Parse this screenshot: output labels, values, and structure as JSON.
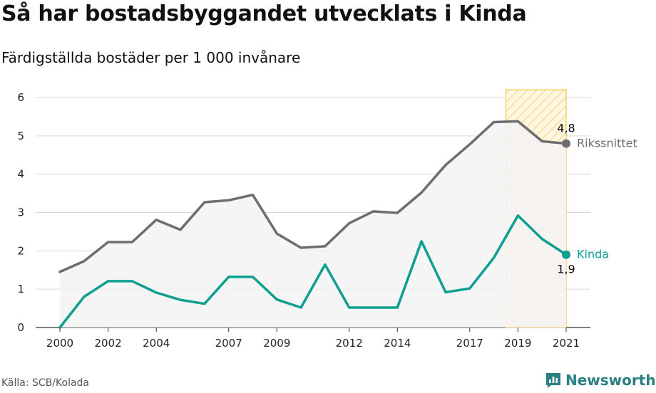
{
  "title": "Så har bostadsbyggandet utvecklats i Kinda",
  "subtitle": "Färdigställda bostäder per 1 000 invånare",
  "source": "Källa: SCB/Kolada",
  "brand": "Newsworthy",
  "colors": {
    "riket": "#6f6c70",
    "kinda": "#0f9e92",
    "fill": "#f3f3f4",
    "highlight": "#f5c842",
    "brand": "#2a7f80"
  },
  "chart_data": {
    "type": "line",
    "x": [
      2000,
      2001,
      2002,
      2003,
      2004,
      2005,
      2006,
      2007,
      2008,
      2009,
      2010,
      2011,
      2012,
      2013,
      2014,
      2015,
      2016,
      2017,
      2018,
      2019,
      2020,
      2021
    ],
    "series": [
      {
        "name": "Rikssnittet",
        "end_label": "4,8",
        "values": [
          1.45,
          1.73,
          2.23,
          2.23,
          2.81,
          2.55,
          3.27,
          3.32,
          3.46,
          2.45,
          2.08,
          2.12,
          2.72,
          3.03,
          2.99,
          3.52,
          4.24,
          4.78,
          5.36,
          5.38,
          4.86,
          4.8
        ]
      },
      {
        "name": "Kinda",
        "end_label": "1,9",
        "values": [
          0.0,
          0.8,
          1.21,
          1.21,
          0.91,
          0.72,
          0.62,
          1.32,
          1.32,
          0.73,
          0.52,
          1.64,
          0.52,
          0.52,
          0.52,
          2.25,
          0.92,
          1.02,
          1.82,
          2.92,
          2.31,
          1.9
        ]
      }
    ],
    "x_tick_labels": [
      "2000",
      "2002",
      "2004",
      "2007",
      "2009",
      "2012",
      "2014",
      "2017",
      "2019",
      "2021"
    ],
    "y_ticks": [
      0,
      1,
      2,
      3,
      4,
      5,
      6
    ],
    "ylim": [
      0,
      6.2
    ],
    "highlight_range": [
      2018.5,
      2021
    ],
    "grid": "horizontal"
  }
}
